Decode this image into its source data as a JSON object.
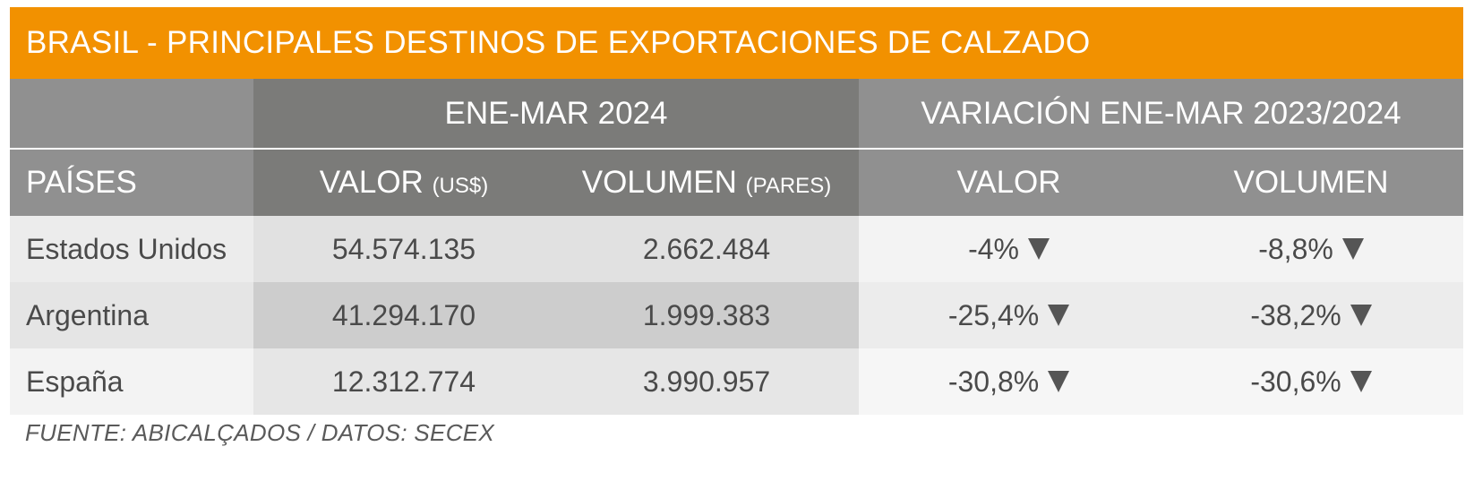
{
  "title": "BRASIL - PRINCIPALES DESTINOS DE EXPORTACIONES DE CALZADO",
  "header_groups": {
    "period": "ENE-MAR 2024",
    "variation": "VARIACIÓN ENE-MAR 2023/2024"
  },
  "columns": {
    "country": "PAÍSES",
    "value": "VALOR",
    "value_unit": "(US$)",
    "volume": "VOLUMEN",
    "volume_unit": "(PARES)",
    "var_value": "VALOR",
    "var_volume": "VOLUMEN"
  },
  "rows": [
    {
      "country": "Estados Unidos",
      "value": "54.574.135",
      "volume": "2.662.484",
      "var_value": "-4%",
      "var_volume": "-8,8%"
    },
    {
      "country": "Argentina",
      "value": "41.294.170",
      "volume": "1.999.383",
      "var_value": "-25,4%",
      "var_volume": "-38,2%"
    },
    {
      "country": "España",
      "value": "12.312.774",
      "volume": "3.990.957",
      "var_value": "-30,8%",
      "var_volume": "-30,6%"
    }
  ],
  "trend_icon": "down-triangle-icon",
  "source": "FUENTE: ABICALÇADOS / DATOS: SECEX",
  "colors": {
    "title_bar": "#f29100",
    "header_dark": "#7b7b79",
    "header_light": "#909090",
    "text": "#4a4a4a"
  }
}
